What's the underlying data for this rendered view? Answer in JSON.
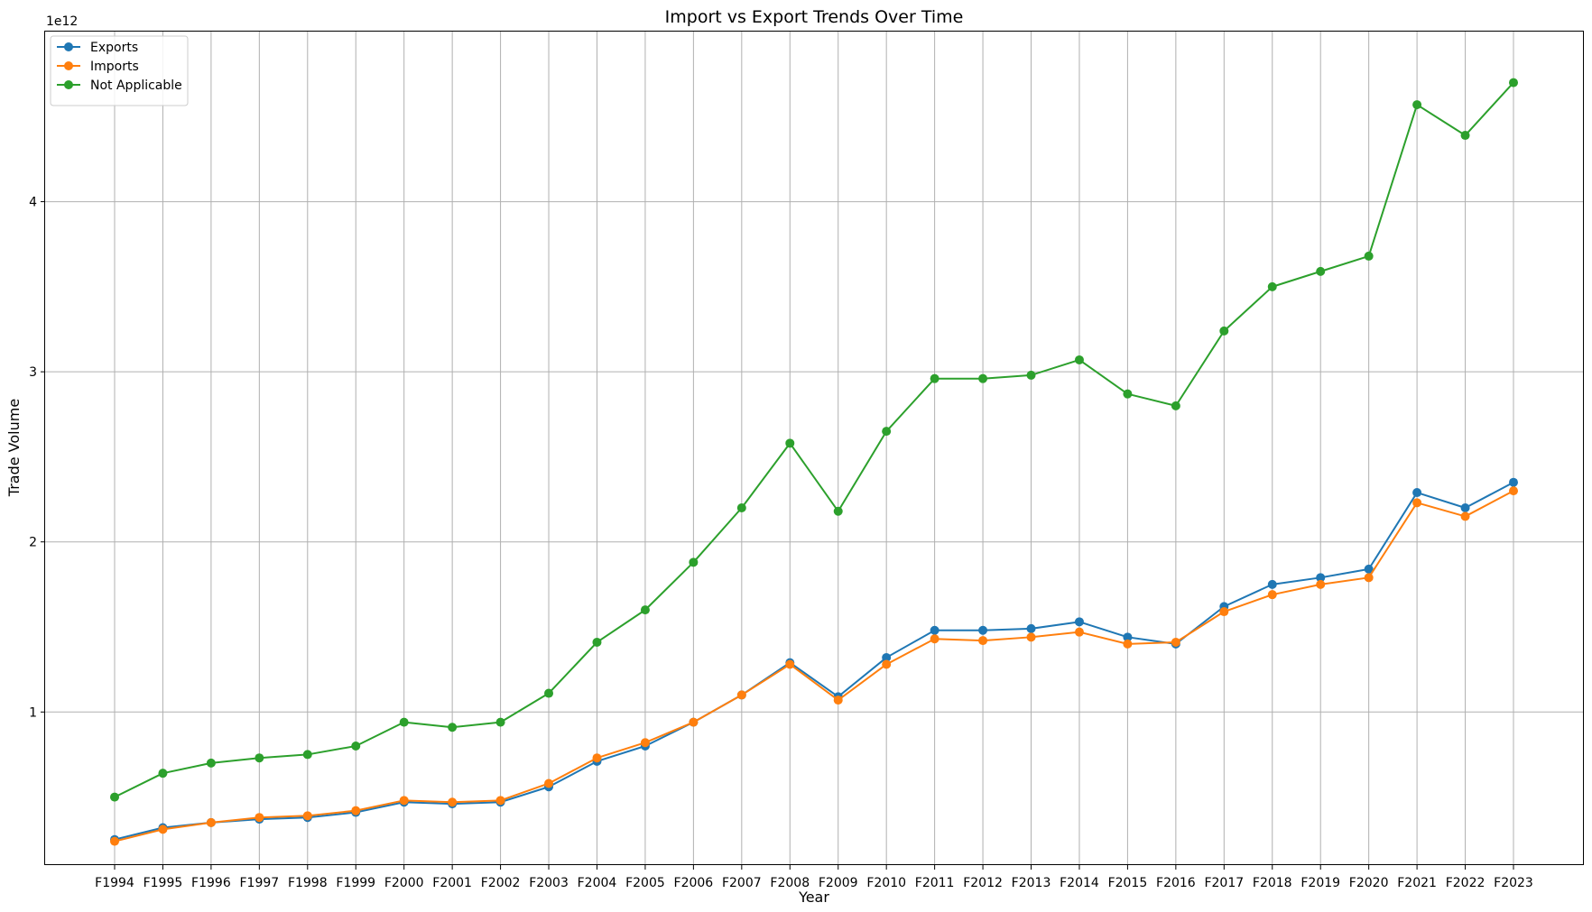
{
  "chart_data": {
    "type": "line",
    "title": "Import vs Export Trends Over Time",
    "xlabel": "Year",
    "ylabel": "Trade Volume",
    "y_offset_label": "1e12",
    "y_scale_factor": 1000000000000,
    "ylim": [
      100000000000.0,
      5000000000000.0
    ],
    "yticks": [
      1000000000000.0,
      2000000000000.0,
      3000000000000.0,
      4000000000000.0
    ],
    "ytick_labels": [
      "1",
      "2",
      "3",
      "4"
    ],
    "grid": true,
    "legend_position": "top-left",
    "categories": [
      "F1994",
      "F1995",
      "F1996",
      "F1997",
      "F1998",
      "F1999",
      "F2000",
      "F2001",
      "F2002",
      "F2003",
      "F2004",
      "F2005",
      "F2006",
      "F2007",
      "F2008",
      "F2009",
      "F2010",
      "F2011",
      "F2012",
      "F2013",
      "F2014",
      "F2015",
      "F2016",
      "F2017",
      "F2018",
      "F2019",
      "F2020",
      "F2021",
      "F2022",
      "F2023"
    ],
    "series": [
      {
        "name": "Exports",
        "color": "#1f77b4",
        "values": [
          250000000000.0,
          320000000000.0,
          350000000000.0,
          370000000000.0,
          380000000000.0,
          410000000000.0,
          470000000000.0,
          460000000000.0,
          470000000000.0,
          560000000000.0,
          710000000000.0,
          800000000000.0,
          940000000000.0,
          1100000000000.0,
          1290000000000.0,
          1090000000000.0,
          1320000000000.0,
          1480000000000.0,
          1480000000000.0,
          1490000000000.0,
          1530000000000.0,
          1440000000000.0,
          1400000000000.0,
          1620000000000.0,
          1750000000000.0,
          1790000000000.0,
          1840000000000.0,
          2290000000000.0,
          2200000000000.0,
          2350000000000.0
        ]
      },
      {
        "name": "Imports",
        "color": "#ff7f0e",
        "values": [
          240000000000.0,
          310000000000.0,
          350000000000.0,
          380000000000.0,
          390000000000.0,
          420000000000.0,
          480000000000.0,
          470000000000.0,
          480000000000.0,
          580000000000.0,
          730000000000.0,
          820000000000.0,
          940000000000.0,
          1100000000000.0,
          1280000000000.0,
          1070000000000.0,
          1280000000000.0,
          1430000000000.0,
          1420000000000.0,
          1440000000000.0,
          1470000000000.0,
          1400000000000.0,
          1410000000000.0,
          1590000000000.0,
          1690000000000.0,
          1750000000000.0,
          1790000000000.0,
          2230000000000.0,
          2150000000000.0,
          2300000000000.0
        ]
      },
      {
        "name": "Not Applicable",
        "color": "#2ca02c",
        "values": [
          500000000000.0,
          640000000000.0,
          700000000000.0,
          730000000000.0,
          750000000000.0,
          800000000000.0,
          940000000000.0,
          910000000000.0,
          940000000000.0,
          1110000000000.0,
          1410000000000.0,
          1600000000000.0,
          1880000000000.0,
          2200000000000.0,
          2580000000000.0,
          2180000000000.0,
          2650000000000.0,
          2960000000000.0,
          2960000000000.0,
          2980000000000.0,
          3070000000000.0,
          2870000000000.0,
          2800000000000.0,
          3240000000000.0,
          3500000000000.0,
          3590000000000.0,
          3680000000000.0,
          4570000000000.0,
          4390000000000.0,
          4700000000000.0
        ]
      }
    ]
  }
}
